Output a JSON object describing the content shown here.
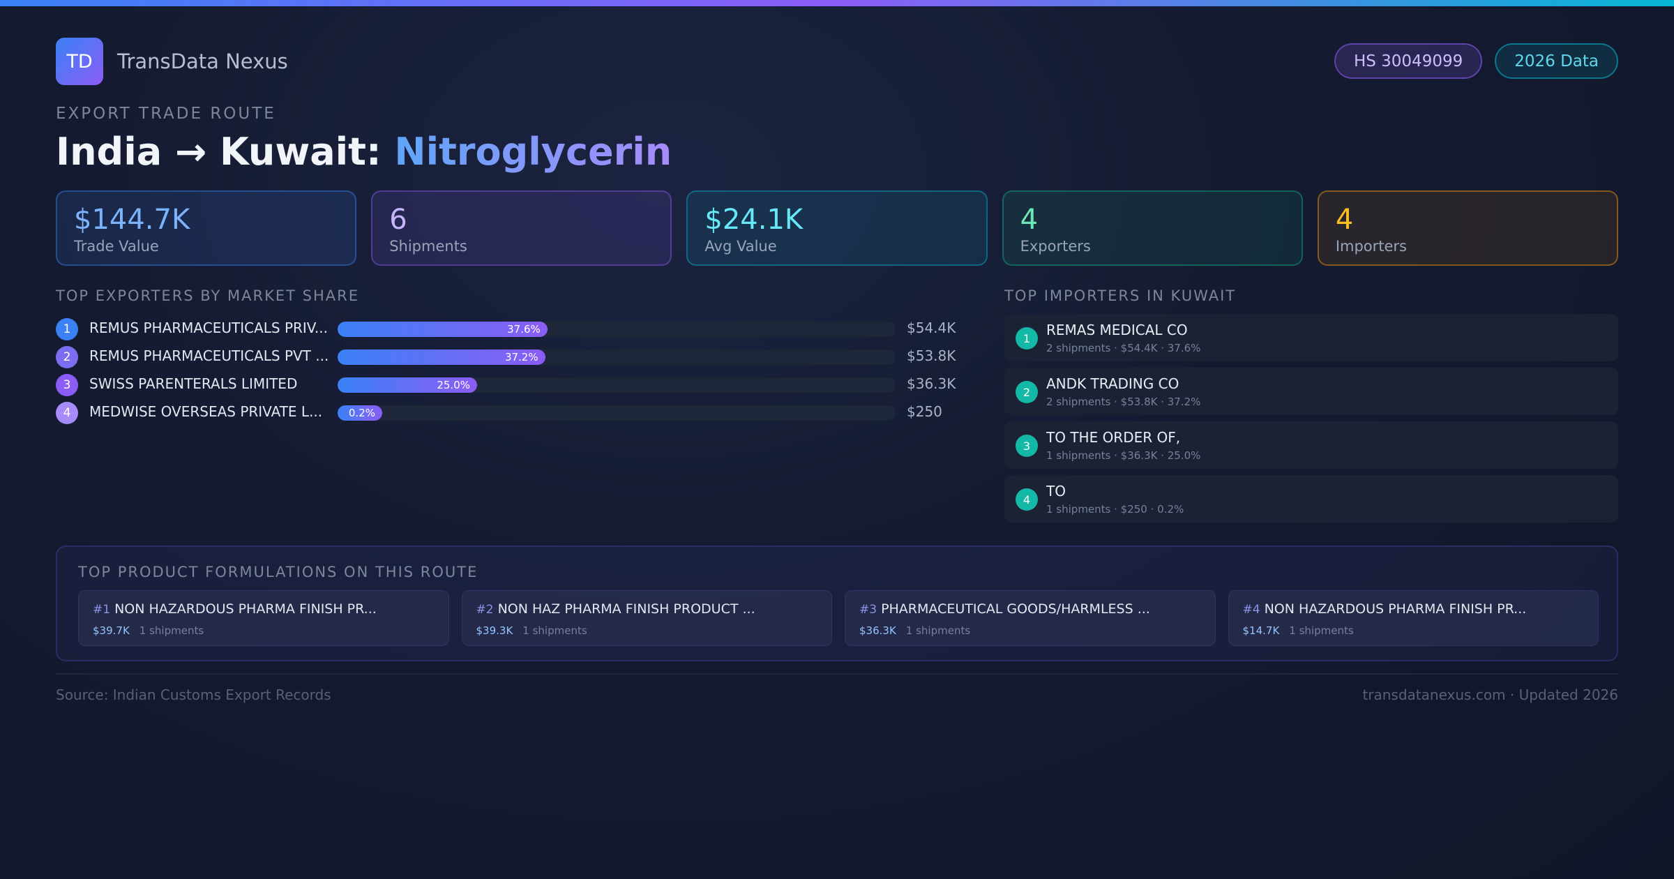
{
  "brand": {
    "logo_text": "TD",
    "name": "TransData Nexus"
  },
  "badges": {
    "hs_code": "HS 30049099",
    "year": "2026 Data"
  },
  "header": {
    "eyebrow": "EXPORT TRADE ROUTE",
    "route": "India → Kuwait: ",
    "product": "Nitroglycerin"
  },
  "stats": [
    {
      "value": "$144.7K",
      "label": "Trade Value"
    },
    {
      "value": "6",
      "label": "Shipments"
    },
    {
      "value": "$24.1K",
      "label": "Avg Value"
    },
    {
      "value": "4",
      "label": "Exporters"
    },
    {
      "value": "4",
      "label": "Importers"
    }
  ],
  "exporters": {
    "heading": "TOP EXPORTERS BY MARKET SHARE",
    "items": [
      {
        "rank": "1",
        "name": "REMUS PHARMACEUTICALS PRIV...",
        "share": 37.6,
        "share_label": "37.6%",
        "value": "$54.4K",
        "color": "#3b82f6"
      },
      {
        "rank": "2",
        "name": "REMUS PHARMACEUTICALS PVT ...",
        "share": 37.2,
        "share_label": "37.2%",
        "value": "$53.8K",
        "color": "#7c6cf0"
      },
      {
        "rank": "3",
        "name": "SWISS PARENTERALS LIMITED",
        "share": 25.0,
        "share_label": "25.0%",
        "value": "$36.3K",
        "color": "#8b5cf6"
      },
      {
        "rank": "4",
        "name": "MEDWISE OVERSEAS PRIVATE L...",
        "share": 0.2,
        "share_label": "0.2%",
        "value": "$250",
        "color": "#a78bfa"
      }
    ]
  },
  "importers": {
    "heading": "TOP IMPORTERS IN KUWAIT",
    "items": [
      {
        "rank": "1",
        "name": "REMAS MEDICAL CO",
        "meta": "2 shipments · $54.4K · 37.6%"
      },
      {
        "rank": "2",
        "name": "ANDK TRADING CO",
        "meta": "2 shipments · $53.8K · 37.2%"
      },
      {
        "rank": "3",
        "name": "TO THE ORDER OF,",
        "meta": "1 shipments · $36.3K · 25.0%"
      },
      {
        "rank": "4",
        "name": "TO",
        "meta": "1 shipments · $250 · 0.2%"
      }
    ]
  },
  "formulations": {
    "heading": "TOP PRODUCT FORMULATIONS ON THIS ROUTE",
    "items": [
      {
        "num": "#1",
        "name": "NON HAZARDOUS PHARMA FINISH PR...",
        "value": "$39.7K",
        "shipments": "1 shipments"
      },
      {
        "num": "#2",
        "name": "NON HAZ PHARMA FINISH PRODUCT ...",
        "value": "$39.3K",
        "shipments": "1 shipments"
      },
      {
        "num": "#3",
        "name": "PHARMACEUTICAL GOODS/HARMLESS ...",
        "value": "$36.3K",
        "shipments": "1 shipments"
      },
      {
        "num": "#4",
        "name": "NON HAZARDOUS PHARMA FINISH PR...",
        "value": "$14.7K",
        "shipments": "1 shipments"
      }
    ]
  },
  "footer": {
    "source": "Source: Indian Customs Export Records",
    "site": "transdatanexus.com · Updated 2026"
  }
}
